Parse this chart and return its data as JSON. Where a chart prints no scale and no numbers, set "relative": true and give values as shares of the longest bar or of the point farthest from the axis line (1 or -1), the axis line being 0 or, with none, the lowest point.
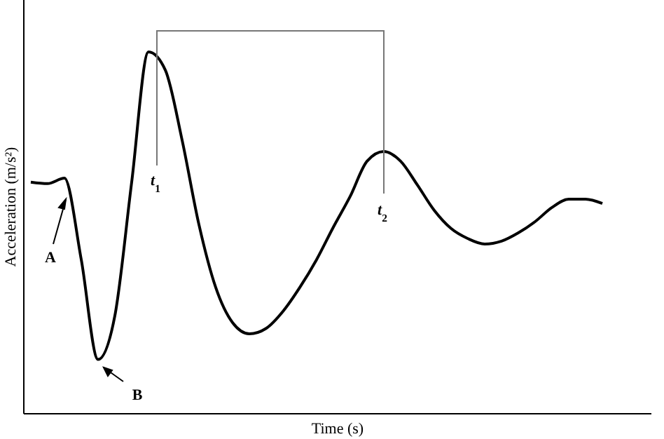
{
  "chart_data": {
    "type": "line",
    "relative": true,
    "xlabel": "Time (s)",
    "ylabel": "Acceleration (m/s²)",
    "categories": [
      null,
      null,
      null,
      null,
      null,
      null,
      null,
      null,
      null,
      null,
      null,
      null,
      null,
      null,
      null,
      null,
      null,
      null,
      null,
      null,
      null,
      null,
      null,
      null,
      null,
      null,
      null,
      null,
      null,
      null,
      null,
      null,
      null,
      null,
      null
    ],
    "series": [
      {
        "color": "#000000",
        "values": [
          0.64,
          0.636,
          0.651,
          0.426,
          0.15,
          0.271,
          0.64,
          1,
          0.95,
          0.756,
          0.523,
          0.349,
          0.252,
          0.221,
          0.236,
          0.283,
          0.349,
          0.426,
          0.516,
          0.601,
          0.698,
          0.725,
          0.698,
          0.632,
          0.562,
          0.512,
          0.484,
          0.469,
          0.477,
          0.5,
          0.531,
          0.57,
          0.593,
          0.593,
          0.581
        ]
      }
    ],
    "annotations": [
      "A",
      "B",
      "t$_{1}$",
      "t$_{2}$"
    ],
    "marker": "none",
    "line_style": "solid"
  }
}
